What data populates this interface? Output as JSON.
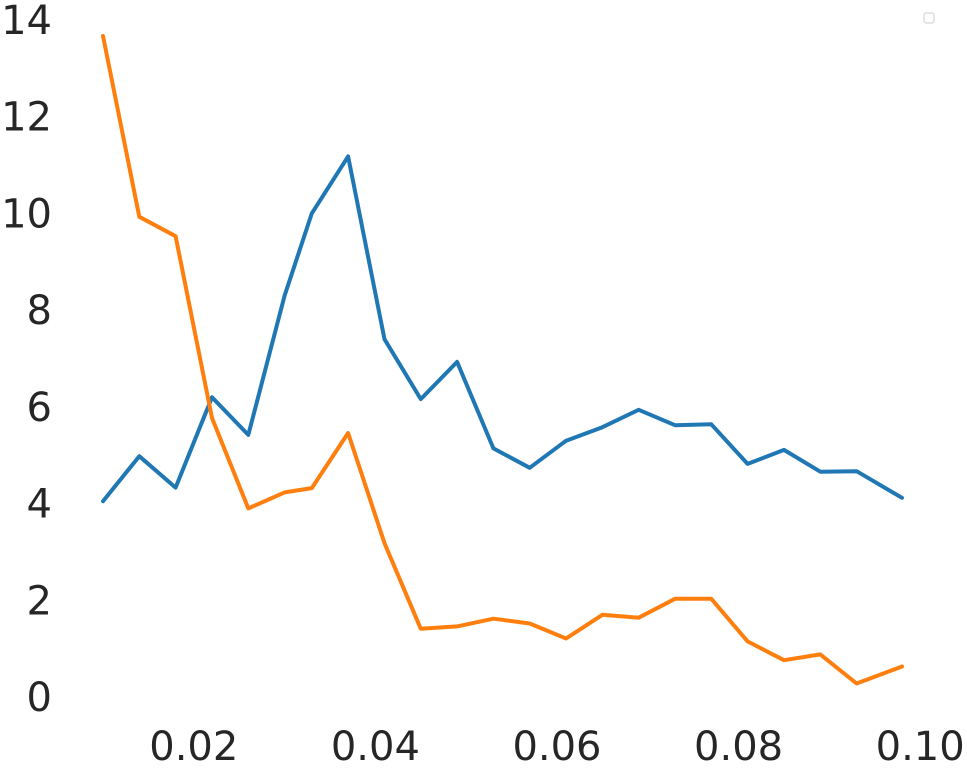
{
  "chart_data": {
    "type": "line",
    "title": "",
    "xlabel": "",
    "ylabel": "",
    "xlim": [
      0.006,
      0.1
    ],
    "ylim": [
      -0.3,
      14.2
    ],
    "x_ticks": [
      {
        "value": 0.02,
        "label": "0.02"
      },
      {
        "value": 0.04,
        "label": "0.04"
      },
      {
        "value": 0.06,
        "label": "0.06"
      },
      {
        "value": 0.08,
        "label": "0.08"
      },
      {
        "value": 0.1,
        "label": "0.10"
      }
    ],
    "y_ticks": [
      {
        "value": 0,
        "label": "0"
      },
      {
        "value": 2,
        "label": "2"
      },
      {
        "value": 4,
        "label": "4"
      },
      {
        "value": 6,
        "label": "6"
      },
      {
        "value": 8,
        "label": "8"
      },
      {
        "value": 10,
        "label": "10"
      },
      {
        "value": 12,
        "label": "12"
      },
      {
        "value": 14,
        "label": "14"
      }
    ],
    "grid": false,
    "legend": {
      "position": "top-right",
      "entries": []
    },
    "x": [
      0.01,
      0.014,
      0.018,
      0.022,
      0.026,
      0.03,
      0.033,
      0.037,
      0.041,
      0.045,
      0.049,
      0.053,
      0.057,
      0.061,
      0.065,
      0.069,
      0.073,
      0.077,
      0.081,
      0.085,
      0.089,
      0.093,
      0.098
    ],
    "series": [
      {
        "color": "#1f77b4",
        "values": [
          4.05,
          4.98,
          4.33,
          6.2,
          5.42,
          8.3,
          10.0,
          11.18,
          7.4,
          6.16,
          6.93,
          5.14,
          4.74,
          5.3,
          5.58,
          5.94,
          5.62,
          5.64,
          4.82,
          5.11,
          4.66,
          4.67,
          4.12
        ]
      },
      {
        "color": "#ff7f0e",
        "values": [
          13.67,
          9.93,
          9.53,
          5.77,
          3.9,
          4.23,
          4.32,
          5.46,
          3.18,
          1.41,
          1.46,
          1.62,
          1.52,
          1.21,
          1.7,
          1.64,
          2.03,
          2.03,
          1.15,
          0.76,
          0.88,
          0.28,
          0.63
        ]
      }
    ]
  }
}
